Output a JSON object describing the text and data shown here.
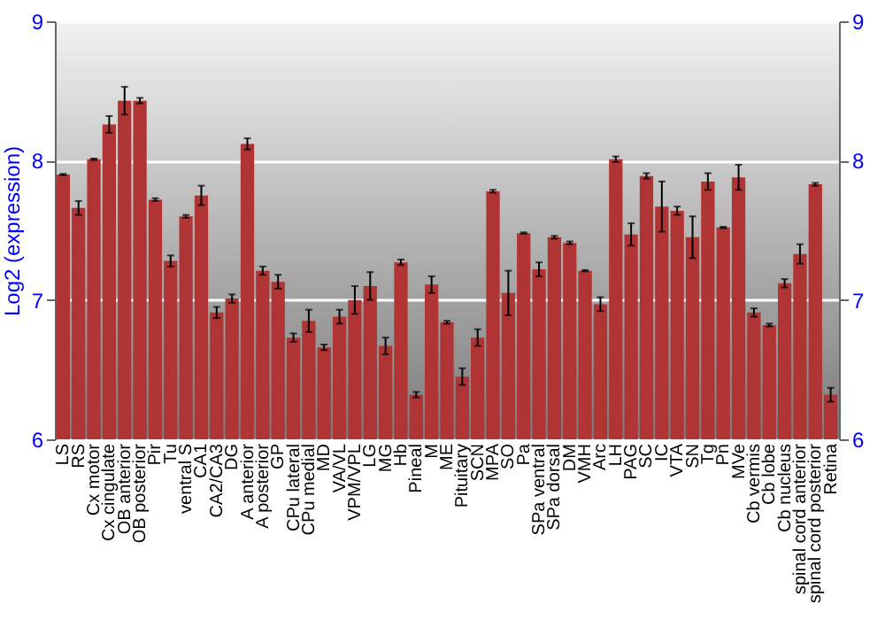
{
  "chart_data": {
    "type": "bar",
    "ylabel": "Log2 (expression)",
    "categories": [
      "LS",
      "RS",
      "Cx motor",
      "Cx cingulate",
      "OB anterior",
      "OB posterior",
      "Pir",
      "Tu",
      "ventral S",
      "CA1",
      "CA2/CA3",
      "DG",
      "A anterior",
      "A posterior",
      "GP",
      "CPu lateral",
      "CPu medial",
      "MD",
      "VA/VL",
      "VPM/VPL",
      "LG",
      "MG",
      "Hb",
      "Pineal",
      "M",
      "ME",
      "Pituitary",
      "SCN",
      "MPA",
      "SO",
      "Pa",
      "SPa ventral",
      "SPa dorsal",
      "DM",
      "VMH",
      "Arc",
      "LH",
      "PAG",
      "SC",
      "IC",
      "VTA",
      "SN",
      "Tg",
      "Pn",
      "MVe",
      "Cb vermis",
      "Cb lobe",
      "Cb nucleus",
      "spinal cord anterior",
      "spinal cord posterior",
      "Retina"
    ],
    "series": [
      {
        "color": "#b03434",
        "values": [
          7.9,
          7.66,
          8.01,
          8.26,
          8.43,
          8.43,
          7.72,
          7.28,
          7.6,
          7.75,
          6.91,
          7.01,
          8.12,
          7.21,
          7.13,
          6.73,
          6.85,
          6.66,
          6.88,
          7.0,
          7.1,
          6.67,
          7.27,
          6.32,
          7.11,
          6.84,
          6.45,
          6.73,
          7.78,
          7.05,
          7.48,
          7.22,
          7.45,
          7.41,
          7.21,
          6.97,
          8.01,
          7.47,
          7.89,
          7.67,
          7.64,
          7.45,
          7.85,
          7.52,
          7.88,
          6.91,
          6.82,
          7.12,
          7.33,
          7.83,
          6.32
        ],
        "errors": [
          0.005,
          0.05,
          0.005,
          0.06,
          0.1,
          0.02,
          0.01,
          0.04,
          0.01,
          0.07,
          0.04,
          0.03,
          0.04,
          0.03,
          0.05,
          0.03,
          0.08,
          0.02,
          0.05,
          0.1,
          0.1,
          0.06,
          0.02,
          0.02,
          0.06,
          0.01,
          0.06,
          0.06,
          0.01,
          0.16,
          0.005,
          0.05,
          0.01,
          0.01,
          0.005,
          0.05,
          0.02,
          0.08,
          0.02,
          0.18,
          0.03,
          0.15,
          0.06,
          0.005,
          0.09,
          0.03,
          0.01,
          0.03,
          0.07,
          0.01,
          0.05
        ]
      }
    ],
    "ylim": [
      6,
      9
    ],
    "yticks": [
      6,
      7,
      8,
      9
    ],
    "y2lim": [
      6,
      9
    ],
    "y2ticks": [
      6,
      7,
      8,
      9
    ],
    "grid": true
  }
}
